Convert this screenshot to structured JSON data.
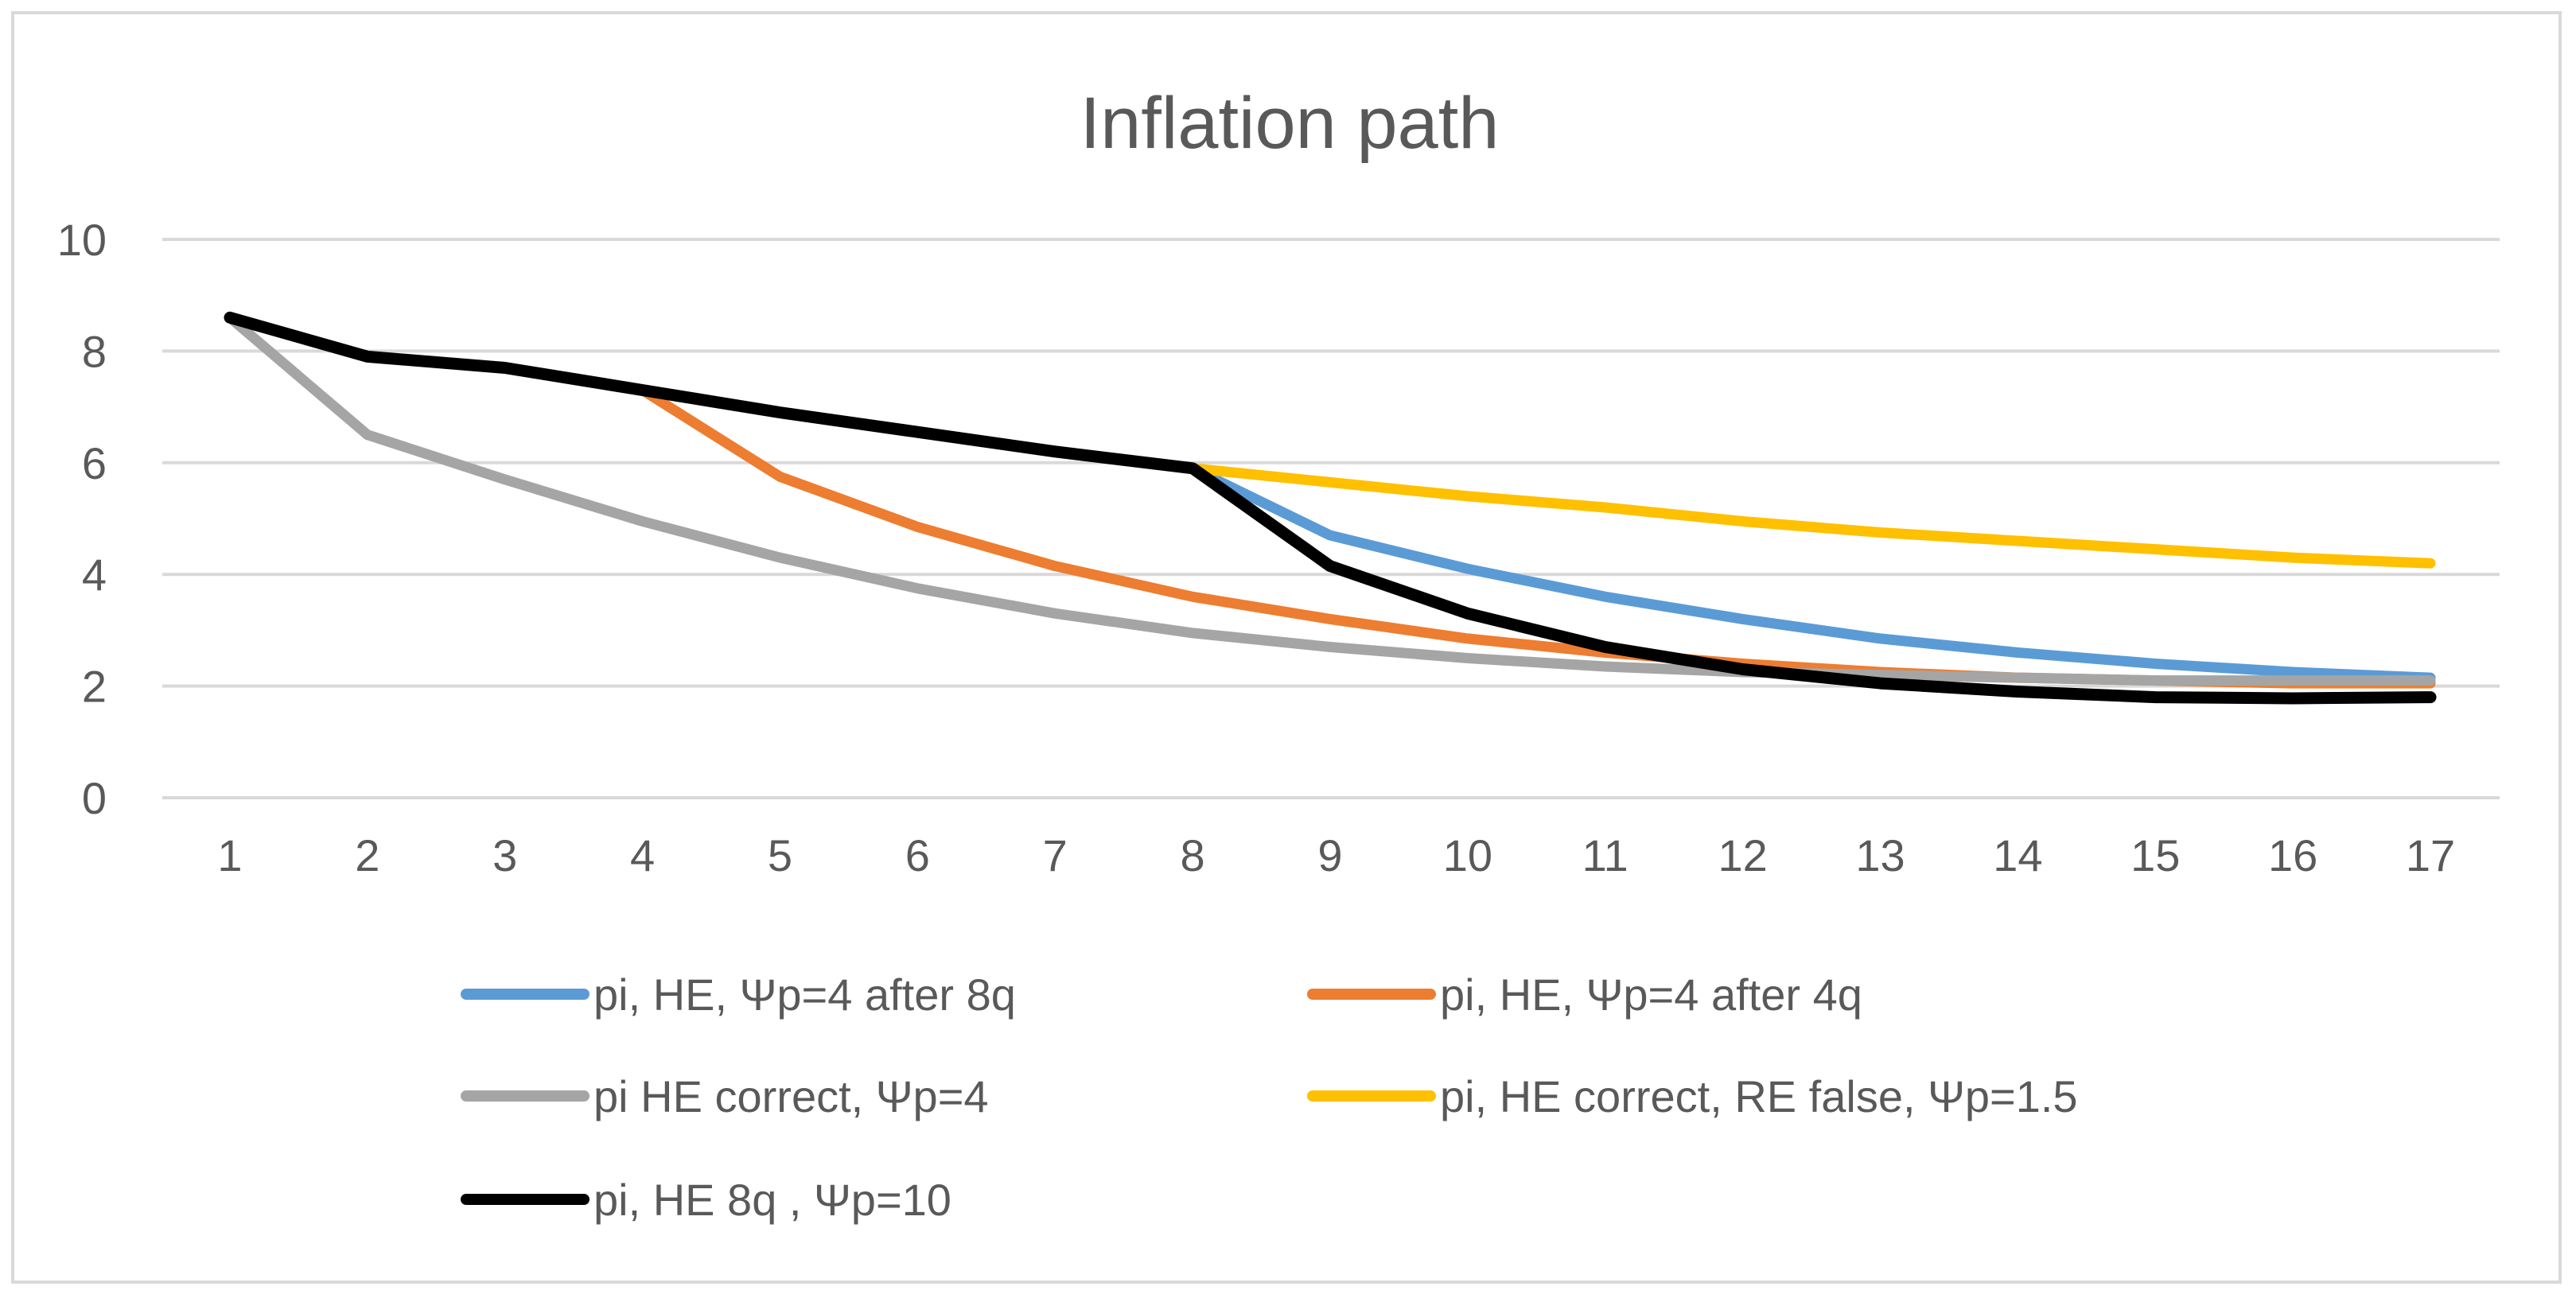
{
  "chart_data": {
    "type": "line",
    "title": "Inflation path",
    "xlabel": "",
    "ylabel": "",
    "x": [
      1,
      2,
      3,
      4,
      5,
      6,
      7,
      8,
      9,
      10,
      11,
      12,
      13,
      14,
      15,
      16,
      17
    ],
    "ylim": [
      0,
      10
    ],
    "yticks": [
      0,
      2,
      4,
      6,
      8,
      10
    ],
    "grid": true,
    "legend_position": "bottom",
    "series": [
      {
        "name": "pi, HE, Ψp=4 after 8q",
        "color": "#5b9bd5",
        "values": [
          8.6,
          7.9,
          7.7,
          7.3,
          6.9,
          6.55,
          6.2,
          5.9,
          4.7,
          4.1,
          3.6,
          3.2,
          2.85,
          2.6,
          2.4,
          2.25,
          2.15
        ]
      },
      {
        "name": "pi, HE, Ψp=4 after 4q",
        "color": "#ed7d31",
        "values": [
          8.6,
          7.9,
          7.7,
          7.3,
          5.75,
          4.85,
          4.15,
          3.6,
          3.2,
          2.85,
          2.6,
          2.4,
          2.25,
          2.15,
          2.1,
          2.05,
          2.05
        ]
      },
      {
        "name": "pi HE correct, Ψp=4",
        "color": "#a5a5a5",
        "values": [
          8.6,
          6.5,
          5.7,
          4.95,
          4.3,
          3.75,
          3.3,
          2.95,
          2.7,
          2.5,
          2.35,
          2.25,
          2.2,
          2.15,
          2.1,
          2.1,
          2.1
        ]
      },
      {
        "name": "pi, HE correct, RE false, Ψp=1.5",
        "color": "#ffc000",
        "values": [
          8.6,
          7.9,
          7.7,
          7.3,
          6.9,
          6.55,
          6.2,
          5.9,
          5.65,
          5.4,
          5.2,
          4.95,
          4.75,
          4.6,
          4.45,
          4.3,
          4.2
        ]
      },
      {
        "name": "pi, HE 8q , Ψp=10",
        "color": "#000000",
        "values": [
          8.6,
          7.9,
          7.7,
          7.3,
          6.9,
          6.55,
          6.2,
          5.9,
          4.15,
          3.3,
          2.7,
          2.3,
          2.05,
          1.9,
          1.8,
          1.78,
          1.8
        ]
      }
    ],
    "draw_order": [
      0,
      1,
      2,
      3,
      4
    ]
  }
}
